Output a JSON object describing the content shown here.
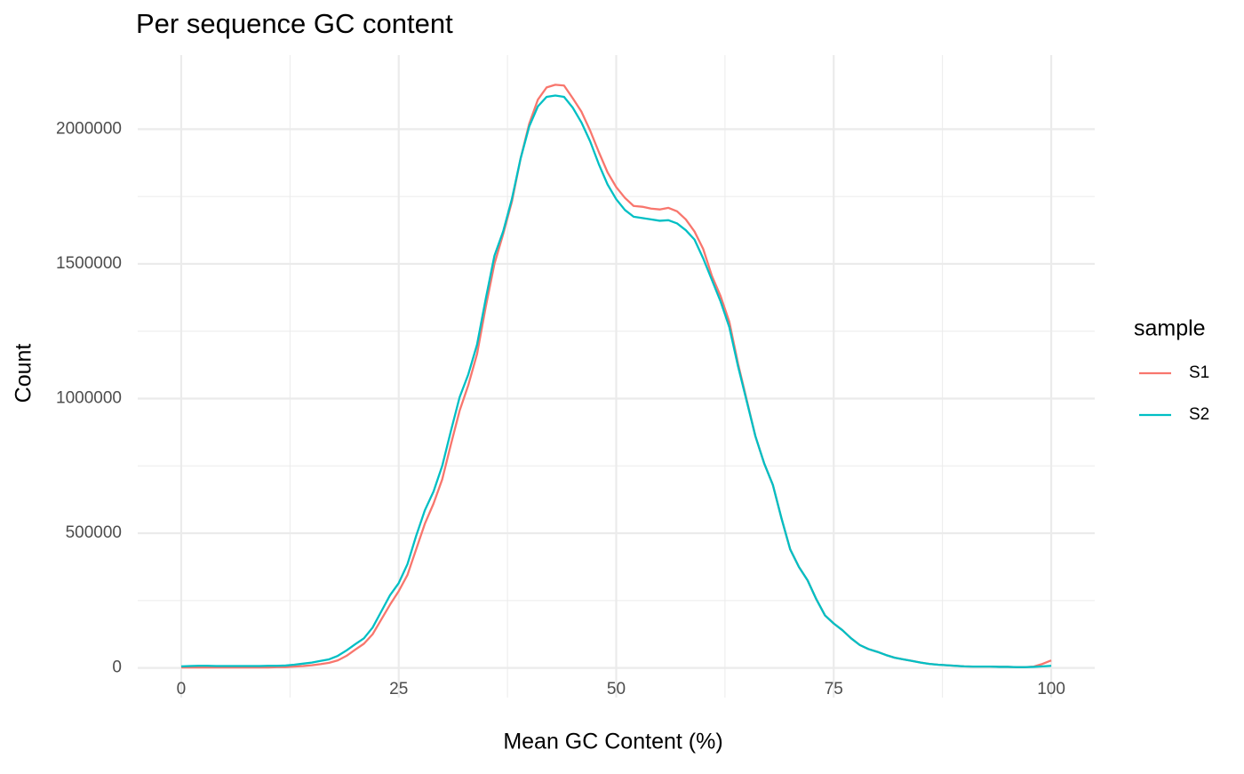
{
  "chart_data": {
    "type": "line",
    "title": "Per sequence GC content",
    "x_label": "Mean GC Content (%)",
    "y_label": "Count",
    "legend_title": "sample",
    "legend_position": "right",
    "grid": true,
    "xlim": [
      -5,
      105
    ],
    "ylim": [
      -110000,
      2275000
    ],
    "xticks": [
      0,
      25,
      50,
      75,
      100
    ],
    "yticks": [
      0,
      500000,
      1000000,
      1500000,
      2000000
    ],
    "x_minor_grid": [
      12.5,
      37.5,
      62.5,
      87.5
    ],
    "y_minor_grid": [
      250000,
      750000,
      1250000,
      1750000
    ],
    "x": [
      0,
      1,
      2,
      3,
      4,
      5,
      6,
      7,
      8,
      9,
      10,
      11,
      12,
      13,
      14,
      15,
      16,
      17,
      18,
      19,
      20,
      21,
      22,
      23,
      24,
      25,
      26,
      27,
      28,
      29,
      30,
      31,
      32,
      33,
      34,
      35,
      36,
      37,
      38,
      39,
      40,
      41,
      42,
      43,
      44,
      45,
      46,
      47,
      48,
      49,
      50,
      51,
      52,
      53,
      54,
      55,
      56,
      57,
      58,
      59,
      60,
      61,
      62,
      63,
      64,
      65,
      66,
      67,
      68,
      69,
      70,
      71,
      72,
      73,
      74,
      75,
      76,
      77,
      78,
      79,
      80,
      81,
      82,
      83,
      84,
      85,
      86,
      87,
      88,
      89,
      90,
      91,
      92,
      93,
      94,
      95,
      96,
      97,
      98,
      99,
      100
    ],
    "series": [
      {
        "name": "S1",
        "color": "#F8766D",
        "values": [
          2000,
          2000,
          2000,
          2000,
          2000,
          2000,
          2000,
          2000,
          2000,
          2000,
          2000,
          3000,
          3000,
          5000,
          7000,
          10000,
          14000,
          19000,
          28000,
          45000,
          68000,
          90000,
          125000,
          180000,
          235000,
          285000,
          345000,
          440000,
          535000,
          610000,
          700000,
          830000,
          955000,
          1050000,
          1165000,
          1340000,
          1500000,
          1610000,
          1730000,
          1890000,
          2020000,
          2110000,
          2155000,
          2165000,
          2162000,
          2115000,
          2065000,
          1995000,
          1915000,
          1840000,
          1785000,
          1745000,
          1715000,
          1712000,
          1705000,
          1702000,
          1708000,
          1695000,
          1665000,
          1620000,
          1555000,
          1455000,
          1380000,
          1285000,
          1130000,
          995000,
          860000,
          760000,
          680000,
          555000,
          440000,
          375000,
          325000,
          255000,
          195000,
          165000,
          140000,
          110000,
          85000,
          70000,
          60000,
          48000,
          38000,
          32000,
          26000,
          20000,
          15000,
          12000,
          10000,
          8000,
          6000,
          5000,
          5000,
          5000,
          4000,
          4000,
          3000,
          3000,
          5000,
          15000,
          28000
        ]
      },
      {
        "name": "S2",
        "color": "#00BFC4",
        "values": [
          6000,
          7000,
          8000,
          8000,
          7000,
          7000,
          7000,
          7000,
          7000,
          7000,
          8000,
          8000,
          9000,
          12000,
          16000,
          20000,
          26000,
          32000,
          45000,
          65000,
          88000,
          110000,
          150000,
          210000,
          270000,
          315000,
          385000,
          490000,
          585000,
          655000,
          750000,
          880000,
          1005000,
          1090000,
          1200000,
          1370000,
          1530000,
          1620000,
          1740000,
          1890000,
          2010000,
          2085000,
          2120000,
          2125000,
          2120000,
          2080000,
          2025000,
          1955000,
          1870000,
          1795000,
          1740000,
          1700000,
          1675000,
          1670000,
          1665000,
          1660000,
          1662000,
          1650000,
          1625000,
          1590000,
          1520000,
          1440000,
          1360000,
          1265000,
          1120000,
          990000,
          860000,
          760000,
          680000,
          555000,
          440000,
          375000,
          325000,
          255000,
          195000,
          165000,
          140000,
          110000,
          85000,
          70000,
          60000,
          48000,
          38000,
          32000,
          26000,
          20000,
          15000,
          12000,
          10000,
          8000,
          6000,
          5000,
          5000,
          5000,
          4000,
          4000,
          3000,
          3000,
          4000,
          6000,
          8000
        ]
      }
    ]
  }
}
